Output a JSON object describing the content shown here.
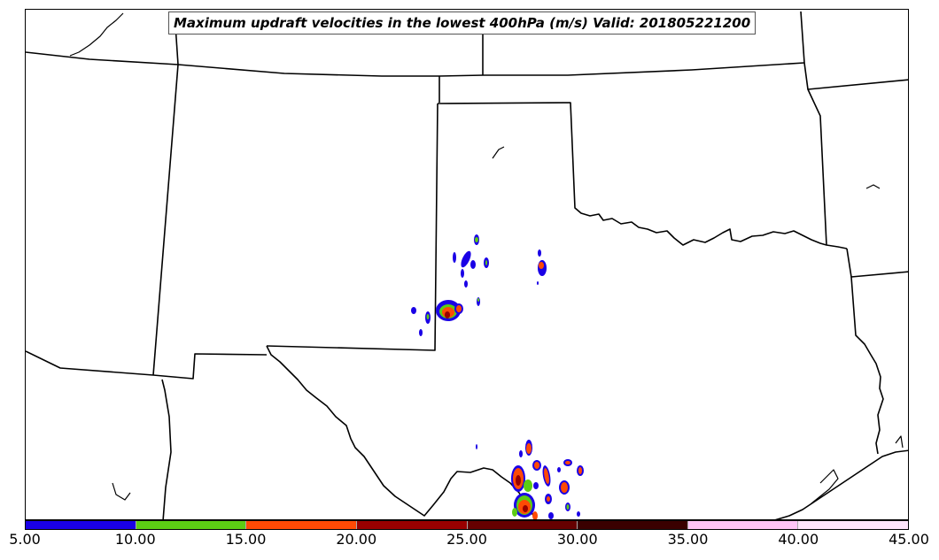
{
  "map": {
    "title": "Maximum updraft velocities in the lowest 400hPa (m/s) Valid: 201805221200"
  },
  "colorbar": {
    "ticks": [
      "5.00",
      "10.00",
      "15.00",
      "20.00",
      "25.00",
      "30.00",
      "35.00",
      "40.00",
      "45.00"
    ],
    "bins": [
      {
        "range": [
          5,
          10
        ],
        "color": "#1a00e6"
      },
      {
        "range": [
          10,
          15
        ],
        "color": "#5ccc14"
      },
      {
        "range": [
          15,
          20
        ],
        "color": "#ff4a05"
      },
      {
        "range": [
          20,
          25
        ],
        "color": "#990000"
      },
      {
        "range": [
          25,
          30
        ],
        "color": "#660000"
      },
      {
        "range": [
          30,
          35
        ],
        "color": "#3a0000"
      },
      {
        "range": [
          35,
          40
        ],
        "color": "#ffc4f6"
      },
      {
        "range": [
          40,
          45
        ],
        "color": "#ffe4fb"
      }
    ]
  },
  "colors": {
    "boundary": "#000000",
    "cell_outline": "#0a00a0"
  }
}
